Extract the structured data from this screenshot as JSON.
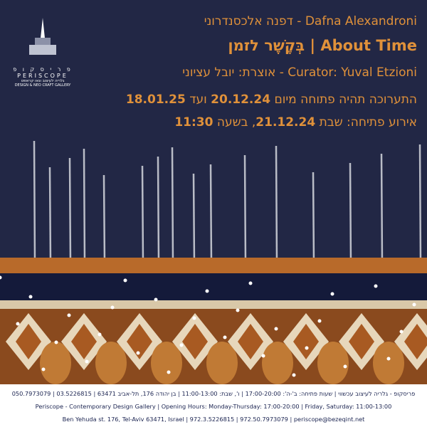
{
  "logo": {
    "hebrew": "פ ר י ס ק ו פ",
    "english": "PERISCOPE",
    "tagline_he": "גלריה לעיצוב ונאו קראפט",
    "tagline_en": "DESIGN & NEO CRAFT GALLERY"
  },
  "header": {
    "artist": "Dafna Alexandroni - דפנה אלכסנדרוני",
    "title": "About Time | בְּקֶשֶׁר לזמן",
    "curator": "Curator: Yuval Etzioni - אוצרת: יובל עציוני"
  },
  "dates": {
    "intro": "התערוכה תהיה פתוחה מיום",
    "from": "20.12.24",
    "until_word": "ועד",
    "until": "18.01.25"
  },
  "opening": {
    "intro": "אירוע פתיחה: שבת",
    "date": "21.12.24",
    "time_word": ", בשעה",
    "time": "11:30"
  },
  "footer": {
    "line_he": "פריסקופ - גלריה לעיצוב עכשווי | שעות פתיחה: ב'-ה': 17:00-20:00 | ו', שבת: 11:00-13:00 | בן יהודה 176, תל-אביב 63471 | 03.5226815 | 050.7973079",
    "line_en": "Periscope - Contemporary Design Gallery | Opening Hours: Monday-Thursday: 17:00-20:00 | Friday, Saturday: 11:00-13:00",
    "line_address": "Ben Yehuda st. 176, Tel-Aviv 63471, Israel | 972.3.5226815 | 972.50.7973079 | periscope@bezeqint.net"
  }
}
